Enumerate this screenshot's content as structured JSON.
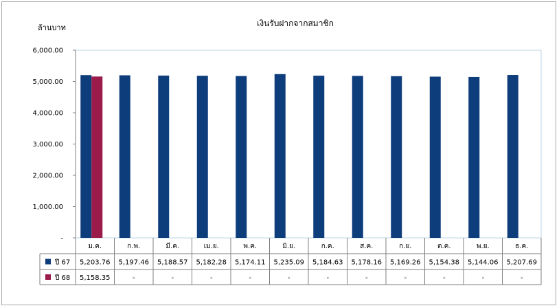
{
  "chart_data": {
    "type": "bar",
    "title": "เงินรับฝากจากสมาชิก",
    "ylabel": "ล้านบาท",
    "xlabel": "",
    "ylim": [
      0,
      6000
    ],
    "yticks": [
      "-",
      "1,000.00",
      "2,000.00",
      "3,000.00",
      "4,000.00",
      "5,000.00",
      "6,000.00"
    ],
    "grid": false,
    "legend": "data-table",
    "categories": [
      "ม.ค.",
      "ก.พ.",
      "มี.ค.",
      "เม.ย.",
      "พ.ค.",
      "มิ.ย.",
      "ก.ค.",
      "ส.ค.",
      "ก.ย.",
      "ต.ค.",
      "พ.ย.",
      "ธ.ค."
    ],
    "series": [
      {
        "name": "ปี 67",
        "color": "#0e3d7c",
        "values": [
          5203.76,
          5197.46,
          5188.57,
          5182.28,
          5174.11,
          5235.09,
          5184.63,
          5178.16,
          5169.26,
          5154.38,
          5144.06,
          5207.69
        ],
        "labels": [
          "5,203.76",
          "5,197.46",
          "5,188.57",
          "5,182.28",
          "5,174.11",
          "5,235.09",
          "5,184.63",
          "5,178.16",
          "5,169.26",
          "5,154.38",
          "5,144.06",
          "5,207.69"
        ]
      },
      {
        "name": "ปี 68",
        "color": "#9b1b4a",
        "values": [
          5158.35,
          null,
          null,
          null,
          null,
          null,
          null,
          null,
          null,
          null,
          null,
          null
        ],
        "labels": [
          "5,158.35",
          "-",
          "-",
          "-",
          "-",
          "-",
          "-",
          "-",
          "-",
          "-",
          "-",
          "-"
        ]
      }
    ]
  }
}
